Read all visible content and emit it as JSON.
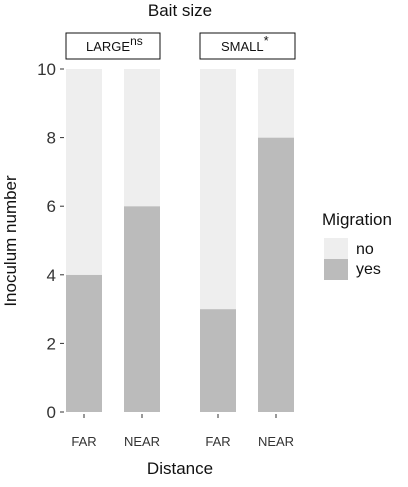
{
  "chart_data": {
    "type": "bar",
    "stacked": true,
    "title": "Bait size",
    "xlabel": "Distance",
    "ylabel": "Inoculum number",
    "ylim": [
      0,
      10
    ],
    "yticks": [
      "0",
      "2",
      "4",
      "6",
      "8",
      "10"
    ],
    "categories": [
      "FAR",
      "NEAR"
    ],
    "legend": {
      "title": "Migration",
      "position": "right",
      "entries": [
        "no",
        "yes"
      ]
    },
    "colors": {
      "no": "#eeeeee",
      "yes": "#bbbbbb"
    },
    "grid": false,
    "panels": [
      {
        "label": "LARGE",
        "significance": "ns",
        "series": [
          {
            "name": "yes",
            "values": [
              4,
              6
            ]
          },
          {
            "name": "no",
            "values": [
              6,
              4
            ]
          }
        ]
      },
      {
        "label": "SMALL",
        "significance": "*",
        "series": [
          {
            "name": "yes",
            "values": [
              3,
              8
            ]
          },
          {
            "name": "no",
            "values": [
              7,
              2
            ]
          }
        ]
      }
    ]
  }
}
